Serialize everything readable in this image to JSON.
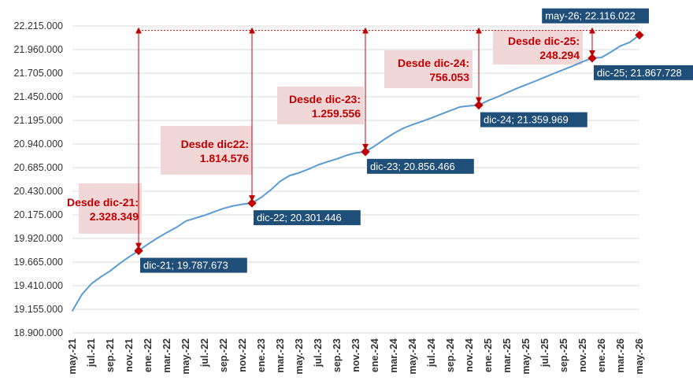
{
  "chart_data": {
    "type": "line",
    "title": "",
    "xlabel": "",
    "ylabel": "",
    "ylim": [
      18900000,
      22215000
    ],
    "yticks": [
      "22.215.000",
      "21.960.000",
      "21.705.000",
      "21.450.000",
      "21.195.000",
      "20.940.000",
      "20.685.000",
      "20.430.000",
      "20.175.000",
      "19.920.000",
      "19.665.000",
      "19.410.000",
      "19.155.000",
      "18.900.000"
    ],
    "ytick_values": [
      22215000,
      21960000,
      21705000,
      21450000,
      21195000,
      20940000,
      20685000,
      20430000,
      20175000,
      19920000,
      19665000,
      19410000,
      19155000,
      18900000
    ],
    "xticks": [
      "may.-21",
      "jul.-21",
      "sep.-21",
      "nov.-21",
      "ene.-22",
      "mar.-22",
      "may.-22",
      "jul.-22",
      "sep.-22",
      "nov.-22",
      "ene.-23",
      "mar.-23",
      "may.-23",
      "jul.-23",
      "sep.-23",
      "nov.-23",
      "ene.-24",
      "mar.-24",
      "may.-24",
      "jul.-24",
      "sep.-24",
      "nov.-24",
      "ene.-25",
      "mar.-25",
      "may.-25",
      "jul.-25",
      "sep.-25",
      "nov.-25",
      "ene.-26",
      "mar.-26",
      "may.-26"
    ],
    "series": [
      {
        "x": [
          "may.-21",
          "jun.-21",
          "jul.-21",
          "ago.-21",
          "sep.-21",
          "oct.-21",
          "nov.-21",
          "dic.-21",
          "ene.-22",
          "feb.-22",
          "mar.-22",
          "abr.-22",
          "may.-22",
          "jun.-22",
          "jul.-22",
          "ago.-22",
          "sep.-22",
          "oct.-22",
          "nov.-22",
          "dic.-22",
          "ene.-23",
          "feb.-23",
          "mar.-23",
          "abr.-23",
          "may.-23",
          "jun.-23",
          "jul.-23",
          "ago.-23",
          "sep.-23",
          "oct.-23",
          "nov.-23",
          "dic.-23",
          "ene.-24",
          "feb.-24",
          "mar.-24",
          "abr.-24",
          "may.-24",
          "jun.-24",
          "jul.-24",
          "ago.-24",
          "sep.-24",
          "oct.-24",
          "nov.-24",
          "dic.-24",
          "ene.-25",
          "feb.-25",
          "mar.-25",
          "abr.-25",
          "may.-25",
          "jun.-25",
          "jul.-25",
          "ago.-25",
          "sep.-25",
          "oct.-25",
          "nov.-25",
          "dic.-25",
          "ene.-26",
          "feb.-26",
          "mar.-26",
          "abr.-26",
          "may.-26"
        ],
        "values": [
          19140000,
          19315000,
          19430000,
          19505000,
          19570000,
          19650000,
          19722000,
          19787673,
          19860000,
          19925000,
          19985000,
          20040000,
          20108000,
          20140000,
          20170000,
          20208000,
          20245000,
          20272000,
          20290000,
          20301446,
          20365000,
          20445000,
          20540000,
          20600000,
          20630000,
          20670000,
          20715000,
          20750000,
          20780000,
          20818000,
          20845000,
          20856466,
          20920000,
          20990000,
          21055000,
          21110000,
          21150000,
          21185000,
          21222000,
          21262000,
          21302000,
          21340000,
          21352000,
          21359969,
          21410000,
          21450000,
          21495000,
          21540000,
          21580000,
          21620000,
          21662000,
          21705000,
          21745000,
          21785000,
          21830000,
          21867728,
          21875000,
          21935000,
          22000000,
          22040000,
          22116022
        ],
        "color": "#5b9bd5"
      }
    ],
    "highlight_points": [
      {
        "x": "dic.-21",
        "value": 19787673,
        "label": "dic-21; 19.787.673"
      },
      {
        "x": "dic.-22",
        "value": 20301446,
        "label": "dic-22; 20.301.446"
      },
      {
        "x": "dic.-23",
        "value": 20856466,
        "label": "dic-23; 20.856.466"
      },
      {
        "x": "dic.-24",
        "value": 21359969,
        "label": "dic-24; 21.359.969"
      },
      {
        "x": "dic.-25",
        "value": 21867728,
        "label": "dic-25; 21.867.728"
      },
      {
        "x": "may.-26",
        "value": 22116022,
        "label": "may-26; 22.116.022"
      }
    ],
    "differences": [
      {
        "line1": "Desde dic-21:",
        "line2": "2.328.349"
      },
      {
        "line1": "Desde dic22:",
        "line2": "1.814.576"
      },
      {
        "line1": "Desde dic-23:",
        "line2": "1.259.556"
      },
      {
        "line1": "Desde dic-24:",
        "line2": "756.053"
      },
      {
        "line1": "Desde dic-25:",
        "line2": "248.294"
      }
    ],
    "colors": {
      "line": "#5b9bd5",
      "marker": "#c00000",
      "label_bg": "#1f4e79",
      "diff_bg": "#f2d7d9",
      "diff_text": "#c00000",
      "grid": "#d9d9d9"
    },
    "grid": true,
    "legend": "none"
  }
}
